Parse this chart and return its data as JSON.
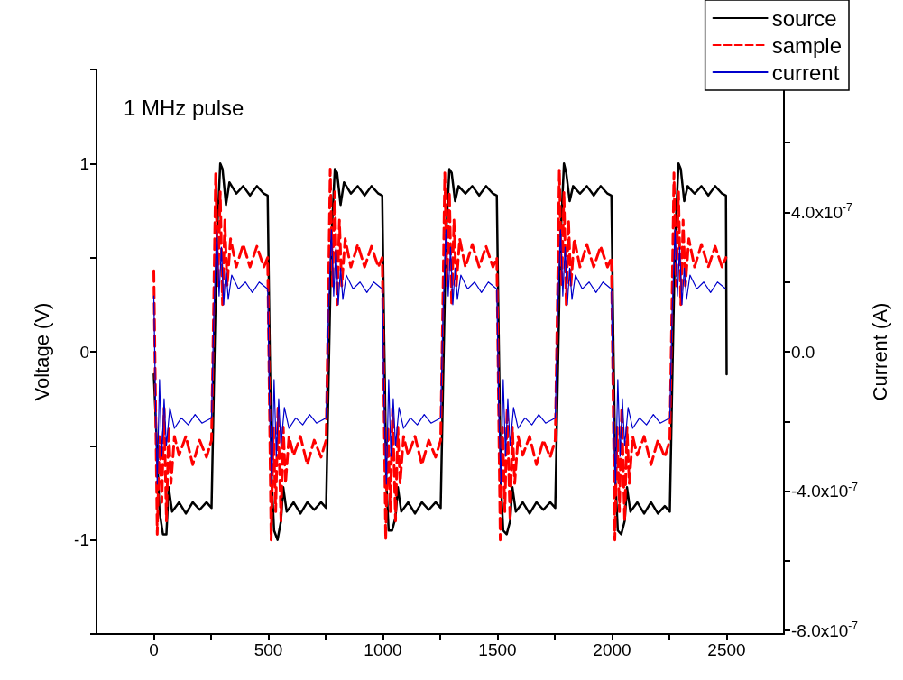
{
  "chart_data": {
    "type": "line",
    "title": "1 MHz pulse",
    "ylabel": "Voltage (V)",
    "y2label": "Current (A)",
    "xlim": [
      -250,
      2750
    ],
    "xticks": [
      {
        "value": 0,
        "label": "0"
      },
      {
        "value": 250,
        "label": null
      },
      {
        "value": 500,
        "label": "500"
      },
      {
        "value": 750,
        "label": null
      },
      {
        "value": 1000,
        "label": "1000"
      },
      {
        "value": 1250,
        "label": null
      },
      {
        "value": 1500,
        "label": "1500"
      },
      {
        "value": 1750,
        "label": null
      },
      {
        "value": 2000,
        "label": "2000"
      },
      {
        "value": 2250,
        "label": null
      },
      {
        "value": 2500,
        "label": "2500"
      }
    ],
    "ylim": [
      -1.5,
      1.5
    ],
    "yticks": [
      {
        "value": -1.5,
        "label": null
      },
      {
        "value": -1,
        "label": "-1"
      },
      {
        "value": -0.5,
        "label": null
      },
      {
        "value": 0,
        "label": "0"
      },
      {
        "value": 0.5,
        "label": null
      },
      {
        "value": 1,
        "label": "1"
      },
      {
        "value": 1.5,
        "label": null
      }
    ],
    "y2lim": [
      -8.1e-07,
      8.1e-07
    ],
    "y2ticks": [
      {
        "value": -8e-07,
        "label": "-8.0x10$^{-7}$"
      },
      {
        "value": -6e-07,
        "label": null
      },
      {
        "value": -4e-07,
        "label": "-4.0x10$^{-7}$"
      },
      {
        "value": -2e-07,
        "label": null
      },
      {
        "value": 0,
        "label": "0.0"
      },
      {
        "value": 2e-07,
        "label": null
      },
      {
        "value": 4e-07,
        "label": "4.0x10$^{-7}$"
      },
      {
        "value": 6e-07,
        "label": null
      }
    ],
    "grid": false,
    "legend": "top right",
    "marker": "none",
    "series": [
      {
        "name": "source",
        "color": "#000000",
        "line_style": "solid",
        "x": [
          0,
          10,
          25,
          40,
          55,
          65,
          80,
          110,
          140,
          170,
          200,
          230,
          252,
          262,
          275,
          290,
          300,
          315,
          330,
          360,
          390,
          420,
          450,
          480,
          497,
          505,
          515,
          525,
          540,
          555,
          565,
          580,
          610,
          640,
          670,
          700,
          730,
          752,
          762,
          775,
          790,
          800,
          815,
          830,
          860,
          890,
          920,
          950,
          980,
          997,
          1005,
          1015,
          1025,
          1040,
          1055,
          1065,
          1080,
          1110,
          1140,
          1170,
          1200,
          1230,
          1252,
          1262,
          1275,
          1290,
          1300,
          1315,
          1330,
          1360,
          1390,
          1420,
          1450,
          1480,
          1497,
          1505,
          1515,
          1525,
          1540,
          1555,
          1565,
          1580,
          1610,
          1640,
          1670,
          1700,
          1730,
          1752,
          1762,
          1775,
          1790,
          1800,
          1815,
          1830,
          1860,
          1890,
          1920,
          1950,
          1980,
          1997,
          2005,
          2015,
          2025,
          2040,
          2055,
          2065,
          2080,
          2110,
          2140,
          2170,
          2200,
          2230,
          2252,
          2262,
          2275,
          2290,
          2300,
          2315,
          2330,
          2360,
          2390,
          2420,
          2450,
          2480,
          2497,
          2500
        ],
        "values": [
          -0.12,
          -0.4,
          -0.85,
          -0.97,
          -0.97,
          -0.72,
          -0.85,
          -0.8,
          -0.86,
          -0.8,
          -0.84,
          -0.8,
          -0.83,
          -0.2,
          0.6,
          1.0,
          0.97,
          0.78,
          0.9,
          0.84,
          0.88,
          0.83,
          0.88,
          0.84,
          0.83,
          0.1,
          -0.7,
          -0.95,
          -1.0,
          -0.9,
          -0.72,
          -0.85,
          -0.8,
          -0.86,
          -0.8,
          -0.84,
          -0.8,
          -0.83,
          -0.2,
          0.6,
          0.97,
          0.95,
          0.78,
          0.9,
          0.84,
          0.88,
          0.83,
          0.88,
          0.84,
          0.83,
          0.1,
          -0.7,
          -0.95,
          -0.95,
          -0.88,
          -0.72,
          -0.85,
          -0.8,
          -0.86,
          -0.8,
          -0.84,
          -0.8,
          -0.83,
          -0.2,
          0.6,
          0.97,
          0.95,
          0.8,
          0.88,
          0.84,
          0.88,
          0.83,
          0.88,
          0.84,
          0.83,
          0.1,
          -0.7,
          -0.95,
          -0.97,
          -0.9,
          -0.72,
          -0.85,
          -0.8,
          -0.86,
          -0.8,
          -0.84,
          -0.8,
          -0.83,
          -0.2,
          0.6,
          1.0,
          0.95,
          0.8,
          0.88,
          0.84,
          0.88,
          0.83,
          0.88,
          0.84,
          0.83,
          0.1,
          -0.7,
          -0.95,
          -0.97,
          -0.9,
          -0.72,
          -0.85,
          -0.8,
          -0.86,
          -0.8,
          -0.86,
          -0.82,
          -0.85,
          -0.2,
          0.6,
          1.0,
          0.97,
          0.8,
          0.88,
          0.84,
          0.88,
          0.83,
          0.88,
          0.84,
          0.83,
          -0.12
        ]
      },
      {
        "name": "sample",
        "color": "#ff0000",
        "line_style": "dashed",
        "x": [
          0,
          8,
          15,
          25,
          35,
          45,
          55,
          65,
          75,
          90,
          110,
          140,
          170,
          200,
          230,
          252,
          262,
          270,
          280,
          290,
          300,
          310,
          320,
          335,
          360,
          390,
          420,
          450,
          480,
          497,
          505,
          512,
          522,
          532,
          542,
          555,
          565,
          575,
          590,
          610,
          640,
          670,
          700,
          730,
          752,
          762,
          770,
          780,
          790,
          800,
          810,
          820,
          835,
          860,
          890,
          920,
          950,
          980,
          997,
          1005,
          1012,
          1022,
          1032,
          1042,
          1055,
          1065,
          1075,
          1090,
          1110,
          1140,
          1170,
          1200,
          1230,
          1252,
          1262,
          1270,
          1280,
          1290,
          1300,
          1310,
          1320,
          1335,
          1360,
          1390,
          1420,
          1450,
          1480,
          1497,
          1505,
          1512,
          1522,
          1532,
          1542,
          1555,
          1565,
          1575,
          1590,
          1610,
          1640,
          1670,
          1700,
          1730,
          1752,
          1762,
          1770,
          1780,
          1790,
          1800,
          1810,
          1820,
          1835,
          1860,
          1890,
          1920,
          1950,
          1980,
          1997,
          2005,
          2012,
          2022,
          2032,
          2042,
          2055,
          2065,
          2075,
          2090,
          2110,
          2140,
          2170,
          2200,
          2230,
          2252,
          2262,
          2270,
          2280,
          2290,
          2300,
          2310,
          2320,
          2335,
          2360,
          2390,
          2420,
          2450,
          2480,
          2497
        ],
        "values": [
          0.43,
          -0.3,
          -0.97,
          -0.45,
          -0.8,
          -0.3,
          -0.9,
          -0.4,
          -0.7,
          -0.45,
          -0.55,
          -0.45,
          -0.6,
          -0.47,
          -0.56,
          -0.47,
          0.3,
          0.95,
          0.35,
          0.85,
          0.25,
          0.7,
          0.35,
          0.6,
          0.45,
          0.57,
          0.45,
          0.56,
          0.45,
          0.5,
          -0.3,
          -1.0,
          -0.4,
          -0.85,
          -0.3,
          -0.9,
          -0.4,
          -0.7,
          -0.45,
          -0.55,
          -0.45,
          -0.6,
          -0.47,
          -0.56,
          -0.47,
          0.3,
          0.97,
          0.35,
          0.85,
          0.25,
          0.7,
          0.35,
          0.6,
          0.45,
          0.57,
          0.45,
          0.56,
          0.45,
          0.5,
          -0.3,
          -1.0,
          -0.4,
          -0.85,
          -0.3,
          -0.9,
          -0.4,
          -0.7,
          -0.45,
          -0.55,
          -0.45,
          -0.6,
          -0.47,
          -0.56,
          -0.47,
          0.3,
          0.95,
          0.35,
          0.85,
          0.25,
          0.7,
          0.35,
          0.6,
          0.45,
          0.57,
          0.45,
          0.56,
          0.45,
          0.5,
          -0.3,
          -1.0,
          -0.4,
          -0.85,
          -0.3,
          -0.9,
          -0.4,
          -0.7,
          -0.45,
          -0.55,
          -0.45,
          -0.6,
          -0.47,
          -0.56,
          -0.47,
          0.3,
          0.97,
          0.35,
          0.85,
          0.25,
          0.7,
          0.35,
          0.6,
          0.45,
          0.57,
          0.45,
          0.56,
          0.45,
          0.5,
          -0.3,
          -1.0,
          -0.4,
          -0.85,
          -0.3,
          -0.9,
          -0.4,
          -0.7,
          -0.45,
          -0.55,
          -0.45,
          -0.6,
          -0.47,
          -0.56,
          -0.47,
          0.3,
          0.95,
          0.35,
          0.85,
          0.25,
          0.7,
          0.35,
          0.6,
          0.45,
          0.57,
          0.45,
          0.56,
          0.45,
          0.5
        ]
      },
      {
        "name": "current",
        "color": "#0000cc",
        "line_style": "solid",
        "axis": "y2",
        "x": [
          0,
          8,
          15,
          25,
          35,
          45,
          55,
          70,
          90,
          120,
          150,
          180,
          210,
          252,
          262,
          275,
          285,
          295,
          305,
          315,
          325,
          340,
          370,
          400,
          430,
          460,
          497,
          505,
          515,
          525,
          535,
          545,
          555,
          570,
          590,
          620,
          650,
          680,
          710,
          752,
          762,
          775,
          785,
          795,
          805,
          815,
          825,
          840,
          870,
          900,
          930,
          960,
          997,
          1005,
          1015,
          1025,
          1035,
          1045,
          1055,
          1070,
          1090,
          1120,
          1150,
          1180,
          1210,
          1252,
          1262,
          1275,
          1285,
          1295,
          1305,
          1315,
          1325,
          1340,
          1370,
          1400,
          1430,
          1460,
          1497,
          1505,
          1515,
          1525,
          1535,
          1545,
          1555,
          1570,
          1590,
          1620,
          1650,
          1680,
          1710,
          1752,
          1762,
          1775,
          1785,
          1795,
          1805,
          1815,
          1825,
          1840,
          1870,
          1900,
          1930,
          1960,
          1997,
          2005,
          2015,
          2025,
          2035,
          2045,
          2055,
          2070,
          2090,
          2120,
          2150,
          2180,
          2210,
          2252,
          2262,
          2275,
          2285,
          2295,
          2305,
          2315,
          2325,
          2340,
          2370,
          2400,
          2430,
          2460,
          2497
        ],
        "values": [
          1.6e-07,
          -1.6e-07,
          -3.8e-07,
          -8e-08,
          -3e-07,
          -1.35e-07,
          -2.7e-07,
          -1.6e-07,
          -2.2e-07,
          -1.9e-07,
          -2.1e-07,
          -1.8e-07,
          -2.05e-07,
          -1.9e-07,
          1.1e-07,
          3.5e-07,
          1.6e-07,
          3e-07,
          1.35e-07,
          2.4e-07,
          1.5e-07,
          2.2e-07,
          1.8e-07,
          2e-07,
          1.7e-07,
          2e-07,
          1.8e-07,
          -1.6e-07,
          -3.8e-07,
          -8e-08,
          -3e-07,
          -1.35e-07,
          -2.7e-07,
          -1.6e-07,
          -2.2e-07,
          -1.9e-07,
          -2.1e-07,
          -1.8e-07,
          -2.05e-07,
          -1.9e-07,
          1.1e-07,
          3.5e-07,
          1.6e-07,
          3e-07,
          1.35e-07,
          2.4e-07,
          1.5e-07,
          2.2e-07,
          1.8e-07,
          2e-07,
          1.7e-07,
          2e-07,
          1.8e-07,
          -1.6e-07,
          -3.8e-07,
          -8e-08,
          -3e-07,
          -1.35e-07,
          -2.7e-07,
          -1.6e-07,
          -2.2e-07,
          -1.9e-07,
          -2.1e-07,
          -1.8e-07,
          -2.05e-07,
          -1.9e-07,
          1.1e-07,
          3.5e-07,
          1.6e-07,
          3e-07,
          1.35e-07,
          2.4e-07,
          1.5e-07,
          2.2e-07,
          1.8e-07,
          2e-07,
          1.7e-07,
          2e-07,
          1.8e-07,
          -1.6e-07,
          -3.8e-07,
          -8e-08,
          -3e-07,
          -1.35e-07,
          -2.7e-07,
          -1.6e-07,
          -2.2e-07,
          -1.9e-07,
          -2.1e-07,
          -1.8e-07,
          -2.05e-07,
          -1.9e-07,
          1.1e-07,
          3.5e-07,
          1.6e-07,
          3e-07,
          1.35e-07,
          2.4e-07,
          1.5e-07,
          2.2e-07,
          1.8e-07,
          2e-07,
          1.7e-07,
          2e-07,
          1.8e-07,
          -1.6e-07,
          -3.8e-07,
          -8e-08,
          -3e-07,
          -1.35e-07,
          -2.7e-07,
          -1.6e-07,
          -2.2e-07,
          -1.9e-07,
          -2.1e-07,
          -1.8e-07,
          -2.05e-07,
          -1.9e-07,
          1.1e-07,
          3.5e-07,
          1.6e-07,
          3e-07,
          1.35e-07,
          2.4e-07,
          1.5e-07,
          2.2e-07,
          1.8e-07,
          2e-07,
          1.7e-07,
          2e-07,
          1.8e-07
        ]
      }
    ]
  }
}
